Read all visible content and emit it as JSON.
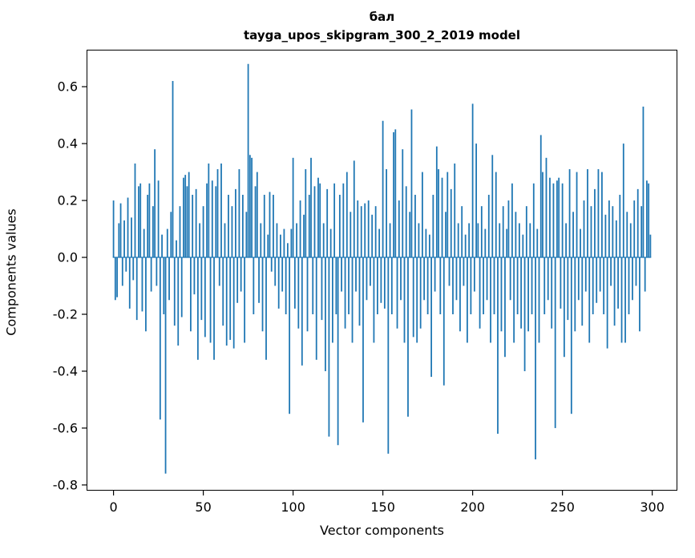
{
  "title_line1": "бал",
  "title_line2": "tayga_upos_skipgram_300_2_2019 model",
  "chart_data": {
    "type": "bar",
    "title": "бал — tayga_upos_skipgram_300_2_2019 model",
    "xlabel": "Vector components",
    "ylabel": "Components values",
    "bar_color": "#1f77b4",
    "grid": false,
    "legend": "none",
    "xlim": [
      -15,
      314
    ],
    "ylim": [
      -0.82,
      0.73
    ],
    "x_ticks": [
      0,
      50,
      100,
      150,
      200,
      250,
      300
    ],
    "y_ticks": [
      -0.8,
      -0.6,
      -0.4,
      -0.2,
      0.0,
      0.2,
      0.4,
      0.6
    ],
    "n_components": 300,
    "values": [
      0.2,
      -0.15,
      -0.14,
      0.12,
      0.19,
      -0.1,
      0.13,
      -0.05,
      0.21,
      -0.18,
      0.14,
      -0.08,
      0.33,
      -0.22,
      0.25,
      0.26,
      -0.19,
      0.1,
      -0.26,
      0.22,
      0.26,
      -0.12,
      0.18,
      0.38,
      -0.1,
      0.27,
      -0.57,
      0.08,
      -0.2,
      -0.76,
      0.1,
      -0.15,
      0.16,
      0.62,
      -0.24,
      0.06,
      -0.31,
      0.18,
      -0.21,
      0.28,
      0.29,
      0.25,
      0.3,
      -0.26,
      0.22,
      -0.13,
      0.24,
      -0.36,
      0.12,
      -0.22,
      0.18,
      -0.28,
      0.26,
      0.33,
      -0.3,
      0.27,
      -0.36,
      0.25,
      0.31,
      -0.1,
      0.33,
      -0.24,
      0.12,
      -0.31,
      0.22,
      -0.29,
      0.18,
      -0.32,
      0.24,
      -0.16,
      0.31,
      -0.12,
      0.22,
      -0.3,
      0.16,
      0.68,
      0.36,
      0.35,
      -0.2,
      0.25,
      0.3,
      -0.16,
      0.12,
      -0.26,
      0.22,
      -0.36,
      0.08,
      0.23,
      -0.05,
      0.22,
      -0.1,
      0.12,
      -0.18,
      0.08,
      -0.12,
      0.1,
      -0.2,
      0.05,
      -0.55,
      0.1,
      0.35,
      -0.18,
      0.12,
      -0.25,
      0.2,
      -0.38,
      0.15,
      0.31,
      -0.26,
      0.22,
      0.35,
      -0.2,
      0.25,
      -0.36,
      0.28,
      0.26,
      -0.22,
      0.12,
      -0.4,
      0.24,
      -0.63,
      0.1,
      -0.3,
      0.26,
      -0.2,
      -0.66,
      0.22,
      -0.12,
      0.26,
      -0.25,
      0.3,
      -0.2,
      0.16,
      -0.3,
      0.34,
      -0.12,
      0.2,
      -0.24,
      0.18,
      -0.58,
      0.19,
      -0.15,
      0.2,
      -0.1,
      0.15,
      -0.3,
      0.18,
      -0.2,
      0.1,
      -0.16,
      0.48,
      -0.18,
      0.31,
      -0.69,
      0.12,
      -0.2,
      0.44,
      0.45,
      -0.25,
      0.2,
      -0.15,
      0.38,
      -0.3,
      0.25,
      -0.56,
      0.16,
      0.52,
      -0.28,
      0.22,
      -0.3,
      0.12,
      -0.25,
      0.3,
      -0.15,
      0.1,
      -0.2,
      0.08,
      -0.42,
      0.22,
      -0.12,
      0.39,
      0.31,
      -0.2,
      0.28,
      -0.45,
      0.16,
      0.3,
      -0.1,
      0.24,
      -0.2,
      0.33,
      -0.15,
      0.12,
      -0.26,
      0.18,
      -0.1,
      0.08,
      -0.3,
      0.12,
      -0.2,
      0.54,
      -0.12,
      0.4,
      0.12,
      -0.25,
      0.18,
      -0.2,
      0.1,
      -0.15,
      0.22,
      -0.3,
      0.36,
      -0.2,
      0.3,
      -0.62,
      0.12,
      -0.26,
      0.18,
      -0.35,
      0.1,
      0.2,
      -0.15,
      0.26,
      -0.3,
      0.16,
      -0.2,
      0.12,
      -0.25,
      0.08,
      -0.4,
      0.18,
      -0.26,
      0.12,
      -0.2,
      0.26,
      -0.71,
      0.1,
      -0.3,
      0.43,
      0.3,
      -0.2,
      0.35,
      -0.15,
      0.28,
      -0.25,
      0.26,
      -0.6,
      0.27,
      0.28,
      -0.18,
      0.26,
      -0.35,
      0.12,
      -0.22,
      0.31,
      -0.55,
      0.16,
      -0.26,
      0.3,
      -0.15,
      0.1,
      -0.24,
      0.2,
      -0.12,
      0.31,
      -0.3,
      0.18,
      -0.2,
      0.24,
      -0.16,
      0.31,
      -0.12,
      0.3,
      -0.2,
      0.15,
      -0.32,
      0.2,
      -0.1,
      0.18,
      -0.24,
      0.13,
      -0.18,
      0.22,
      -0.3,
      0.4,
      -0.3,
      0.16,
      -0.2,
      0.12,
      -0.15,
      0.2,
      -0.1,
      0.24,
      -0.26,
      0.18,
      0.53,
      -0.12,
      0.27,
      0.26,
      0.08
    ]
  }
}
